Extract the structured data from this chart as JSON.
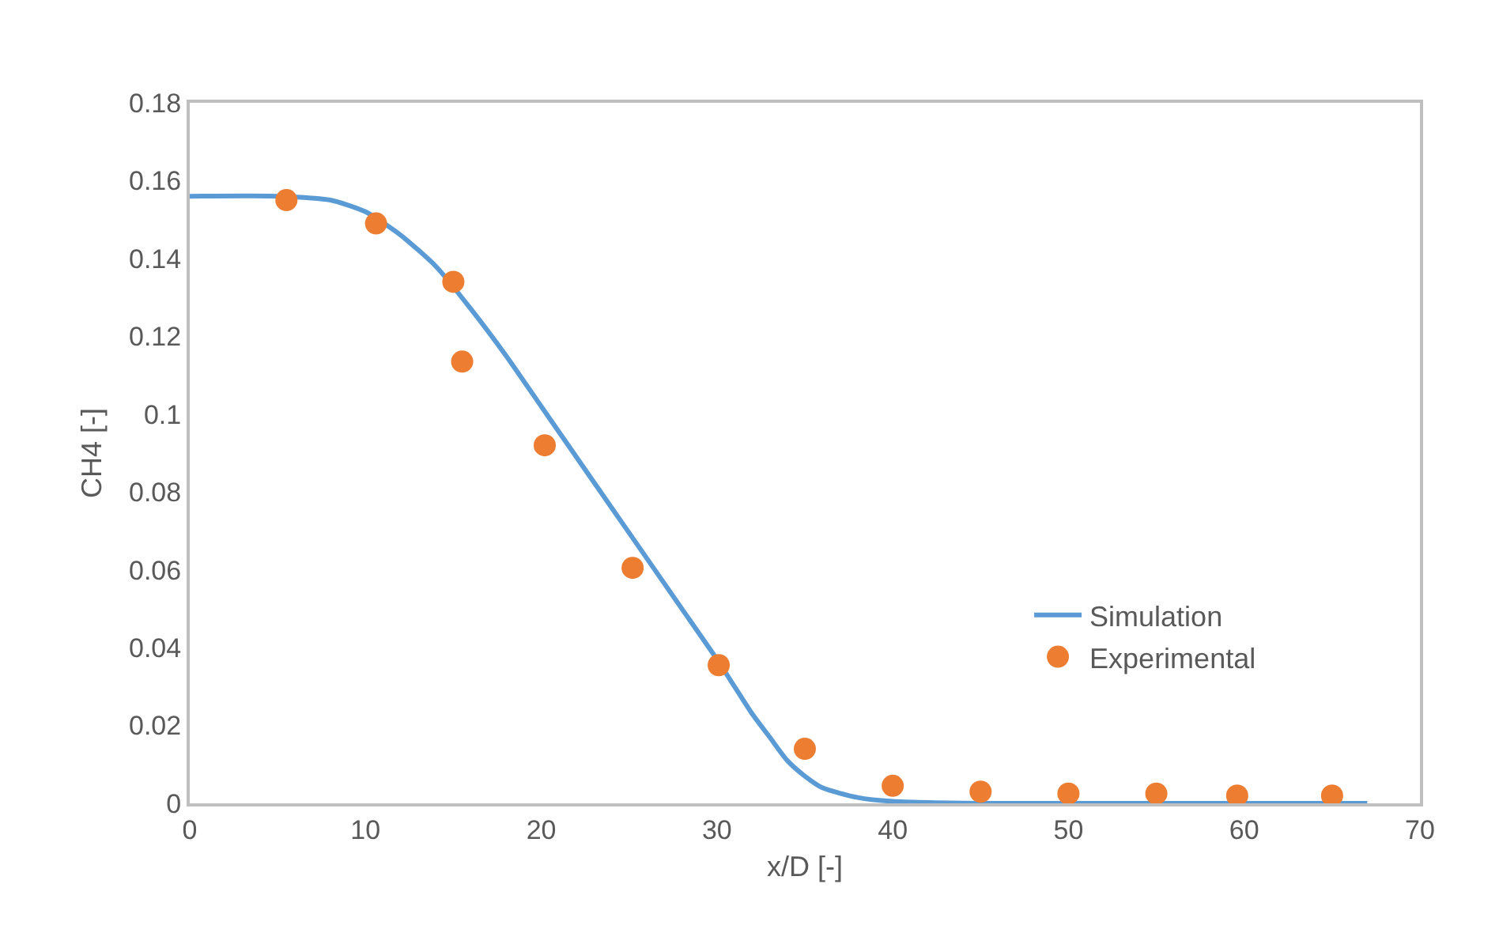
{
  "chart_data": {
    "type": "line",
    "xlabel": "x/D [-]",
    "ylabel": "CH4 [-]",
    "xlim": [
      0,
      70
    ],
    "xticks": [
      0,
      10,
      20,
      30,
      40,
      50,
      60,
      70
    ],
    "ylim": [
      0,
      0.18
    ],
    "yticks": [
      0,
      0.02,
      0.04,
      0.06,
      0.08,
      0.1,
      0.12,
      0.14,
      0.16,
      0.18
    ],
    "grid": false,
    "legend": "right",
    "series": [
      {
        "name": "Simulation",
        "color": "#5b9bd5",
        "marker": "none",
        "line_style": "solid",
        "x": [
          0,
          5,
          8,
          10,
          12,
          14,
          16,
          18,
          20,
          22,
          24,
          26,
          28,
          30,
          31,
          32,
          33,
          34,
          35,
          36,
          38,
          40,
          45,
          67
        ],
        "values": [
          0.156,
          0.156,
          0.155,
          0.152,
          0.146,
          0.138,
          0.127,
          0.115,
          0.102,
          0.089,
          0.076,
          0.063,
          0.05,
          0.037,
          0.03,
          0.023,
          0.017,
          0.011,
          0.007,
          0.004,
          0.0015,
          0.0005,
          0,
          0
        ]
      },
      {
        "name": "Experimental",
        "type": "scatter",
        "color": "#ed7d31",
        "marker": "circle",
        "x": [
          5.5,
          10.6,
          15,
          15.5,
          20.2,
          25.2,
          30.1,
          35,
          40,
          45,
          50,
          55,
          59.6,
          65
        ],
        "values": [
          0.155,
          0.149,
          0.134,
          0.1135,
          0.092,
          0.0605,
          0.0355,
          0.014,
          0.0045,
          0.003,
          0.0025,
          0.0025,
          0.002,
          0.002
        ]
      }
    ]
  }
}
